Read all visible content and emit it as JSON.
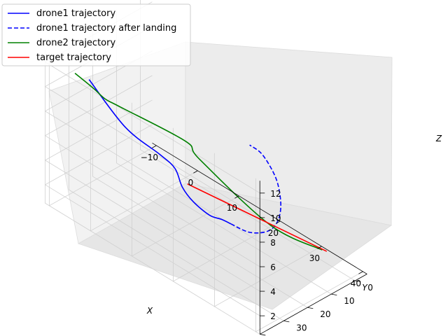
{
  "chart_data": {
    "type": "line",
    "projection": "3d",
    "title": "",
    "xlabel": "X",
    "ylabel": "Y",
    "zlabel": "Z",
    "x_ticks": [
      "−10",
      "0",
      "10",
      "20",
      "30",
      "40"
    ],
    "y_ticks": [
      "0",
      "10",
      "20",
      "30",
      "40"
    ],
    "z_ticks": [
      "2",
      "4",
      "6",
      "8",
      "10",
      "12"
    ],
    "xlim": [
      -10,
      40
    ],
    "ylim": [
      -5,
      40
    ],
    "zlim": [
      0.5,
      13
    ],
    "grid": true,
    "legend_position": "top-left",
    "series": [
      {
        "name": "drone1 trajectory",
        "color": "#0000ff",
        "linestyle": "solid",
        "points": [
          [
            -10.9,
            21.7,
            8.6
          ],
          [
            -2.4,
            21.2,
            6.4
          ],
          [
            4.7,
            19.0,
            5.4
          ],
          [
            7.3,
            17.2,
            4.6
          ],
          [
            7.7,
            14.8,
            2.9
          ],
          [
            9.2,
            12.8,
            1.8
          ],
          [
            12.1,
            11.0,
            1.1
          ],
          [
            13.8,
            9.0,
            0.9
          ],
          [
            15.6,
            8.1,
            0.8
          ]
        ]
      },
      {
        "name": "drone1 trajectory after landing",
        "color": "#0000ff",
        "linestyle": "dashed",
        "points": [
          [
            15.6,
            8.1,
            0.8
          ],
          [
            20.9,
            9.8,
            1.4
          ],
          [
            25.8,
            11.5,
            2.6
          ],
          [
            29.5,
            13.8,
            4.1
          ],
          [
            32.3,
            16.4,
            6.0
          ],
          [
            34.0,
            19.3,
            8.0
          ],
          [
            34.6,
            22.4,
            10.1
          ],
          [
            33.6,
            26.1,
            12.1
          ],
          [
            31.9,
            28.5,
            12.8
          ]
        ]
      },
      {
        "name": "drone2 trajectory",
        "color": "#008000",
        "linestyle": "solid",
        "points": [
          [
            -7.0,
            34.4,
            11.3
          ],
          [
            -1.5,
            36.2,
            11.4
          ],
          [
            1.1,
            35.7,
            11.0
          ],
          [
            3.1,
            32.6,
            10.4
          ],
          [
            14.8,
            25.8,
            9.3
          ],
          [
            14.4,
            19.1,
            7.0
          ],
          [
            24.7,
            7.4,
            2.5
          ],
          [
            31.6,
            -2.5,
            0.8
          ]
        ]
      },
      {
        "name": "target trajectory",
        "color": "#ff0000",
        "linestyle": "solid",
        "points": [
          [
            2.3,
            3.3,
            0.8
          ],
          [
            32.4,
            -3.0,
            0.8
          ]
        ]
      }
    ]
  }
}
